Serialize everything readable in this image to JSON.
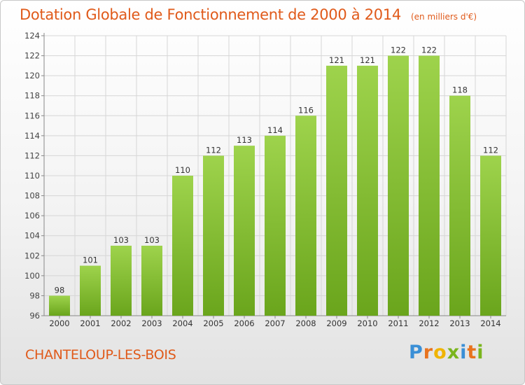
{
  "title": "Dotation Globale de Fonctionnement de 2000 à 2014",
  "unit": "(en milliers d'€)",
  "commune": "CHANTELOUP-LES-BOIS",
  "logo": {
    "text": "Proxiti",
    "letters": [
      {
        "char": "P",
        "color": "#3a8fd6"
      },
      {
        "char": "r",
        "color": "#e8731e"
      },
      {
        "char": "o",
        "color": "#f0b400"
      },
      {
        "char": "x",
        "color": "#7ab51d"
      },
      {
        "char": "i",
        "color": "#3a8fd6"
      },
      {
        "char": "t",
        "color": "#e8731e"
      },
      {
        "char": "i",
        "color": "#7ab51d"
      }
    ]
  },
  "colors": {
    "bar_light": "#9ed34c",
    "bar_dark": "#6aa51c",
    "title": "#e05a1a",
    "grid": "#d6d6d6"
  },
  "chart_data": {
    "type": "bar",
    "title": "Dotation Globale de Fonctionnement de 2000 à 2014",
    "subtitle": "(en milliers d'€)",
    "categories": [
      "2000",
      "2001",
      "2002",
      "2003",
      "2004",
      "2005",
      "2006",
      "2007",
      "2008",
      "2009",
      "2010",
      "2011",
      "2012",
      "2013",
      "2014"
    ],
    "values": [
      98,
      101,
      103,
      103,
      110,
      112,
      113,
      114,
      116,
      121,
      121,
      122,
      122,
      118,
      112
    ],
    "value_labels": [
      "98",
      "101",
      "103",
      "103",
      "110",
      "112",
      "113",
      "114",
      "116",
      "121",
      "121",
      "122",
      "122",
      "118",
      "112"
    ],
    "yticks": [
      96,
      98,
      100,
      102,
      104,
      106,
      108,
      110,
      112,
      114,
      116,
      118,
      120,
      122,
      124
    ],
    "ylim": [
      96,
      124
    ],
    "xlabel": "",
    "ylabel": "",
    "grid": true,
    "legend": "none"
  }
}
